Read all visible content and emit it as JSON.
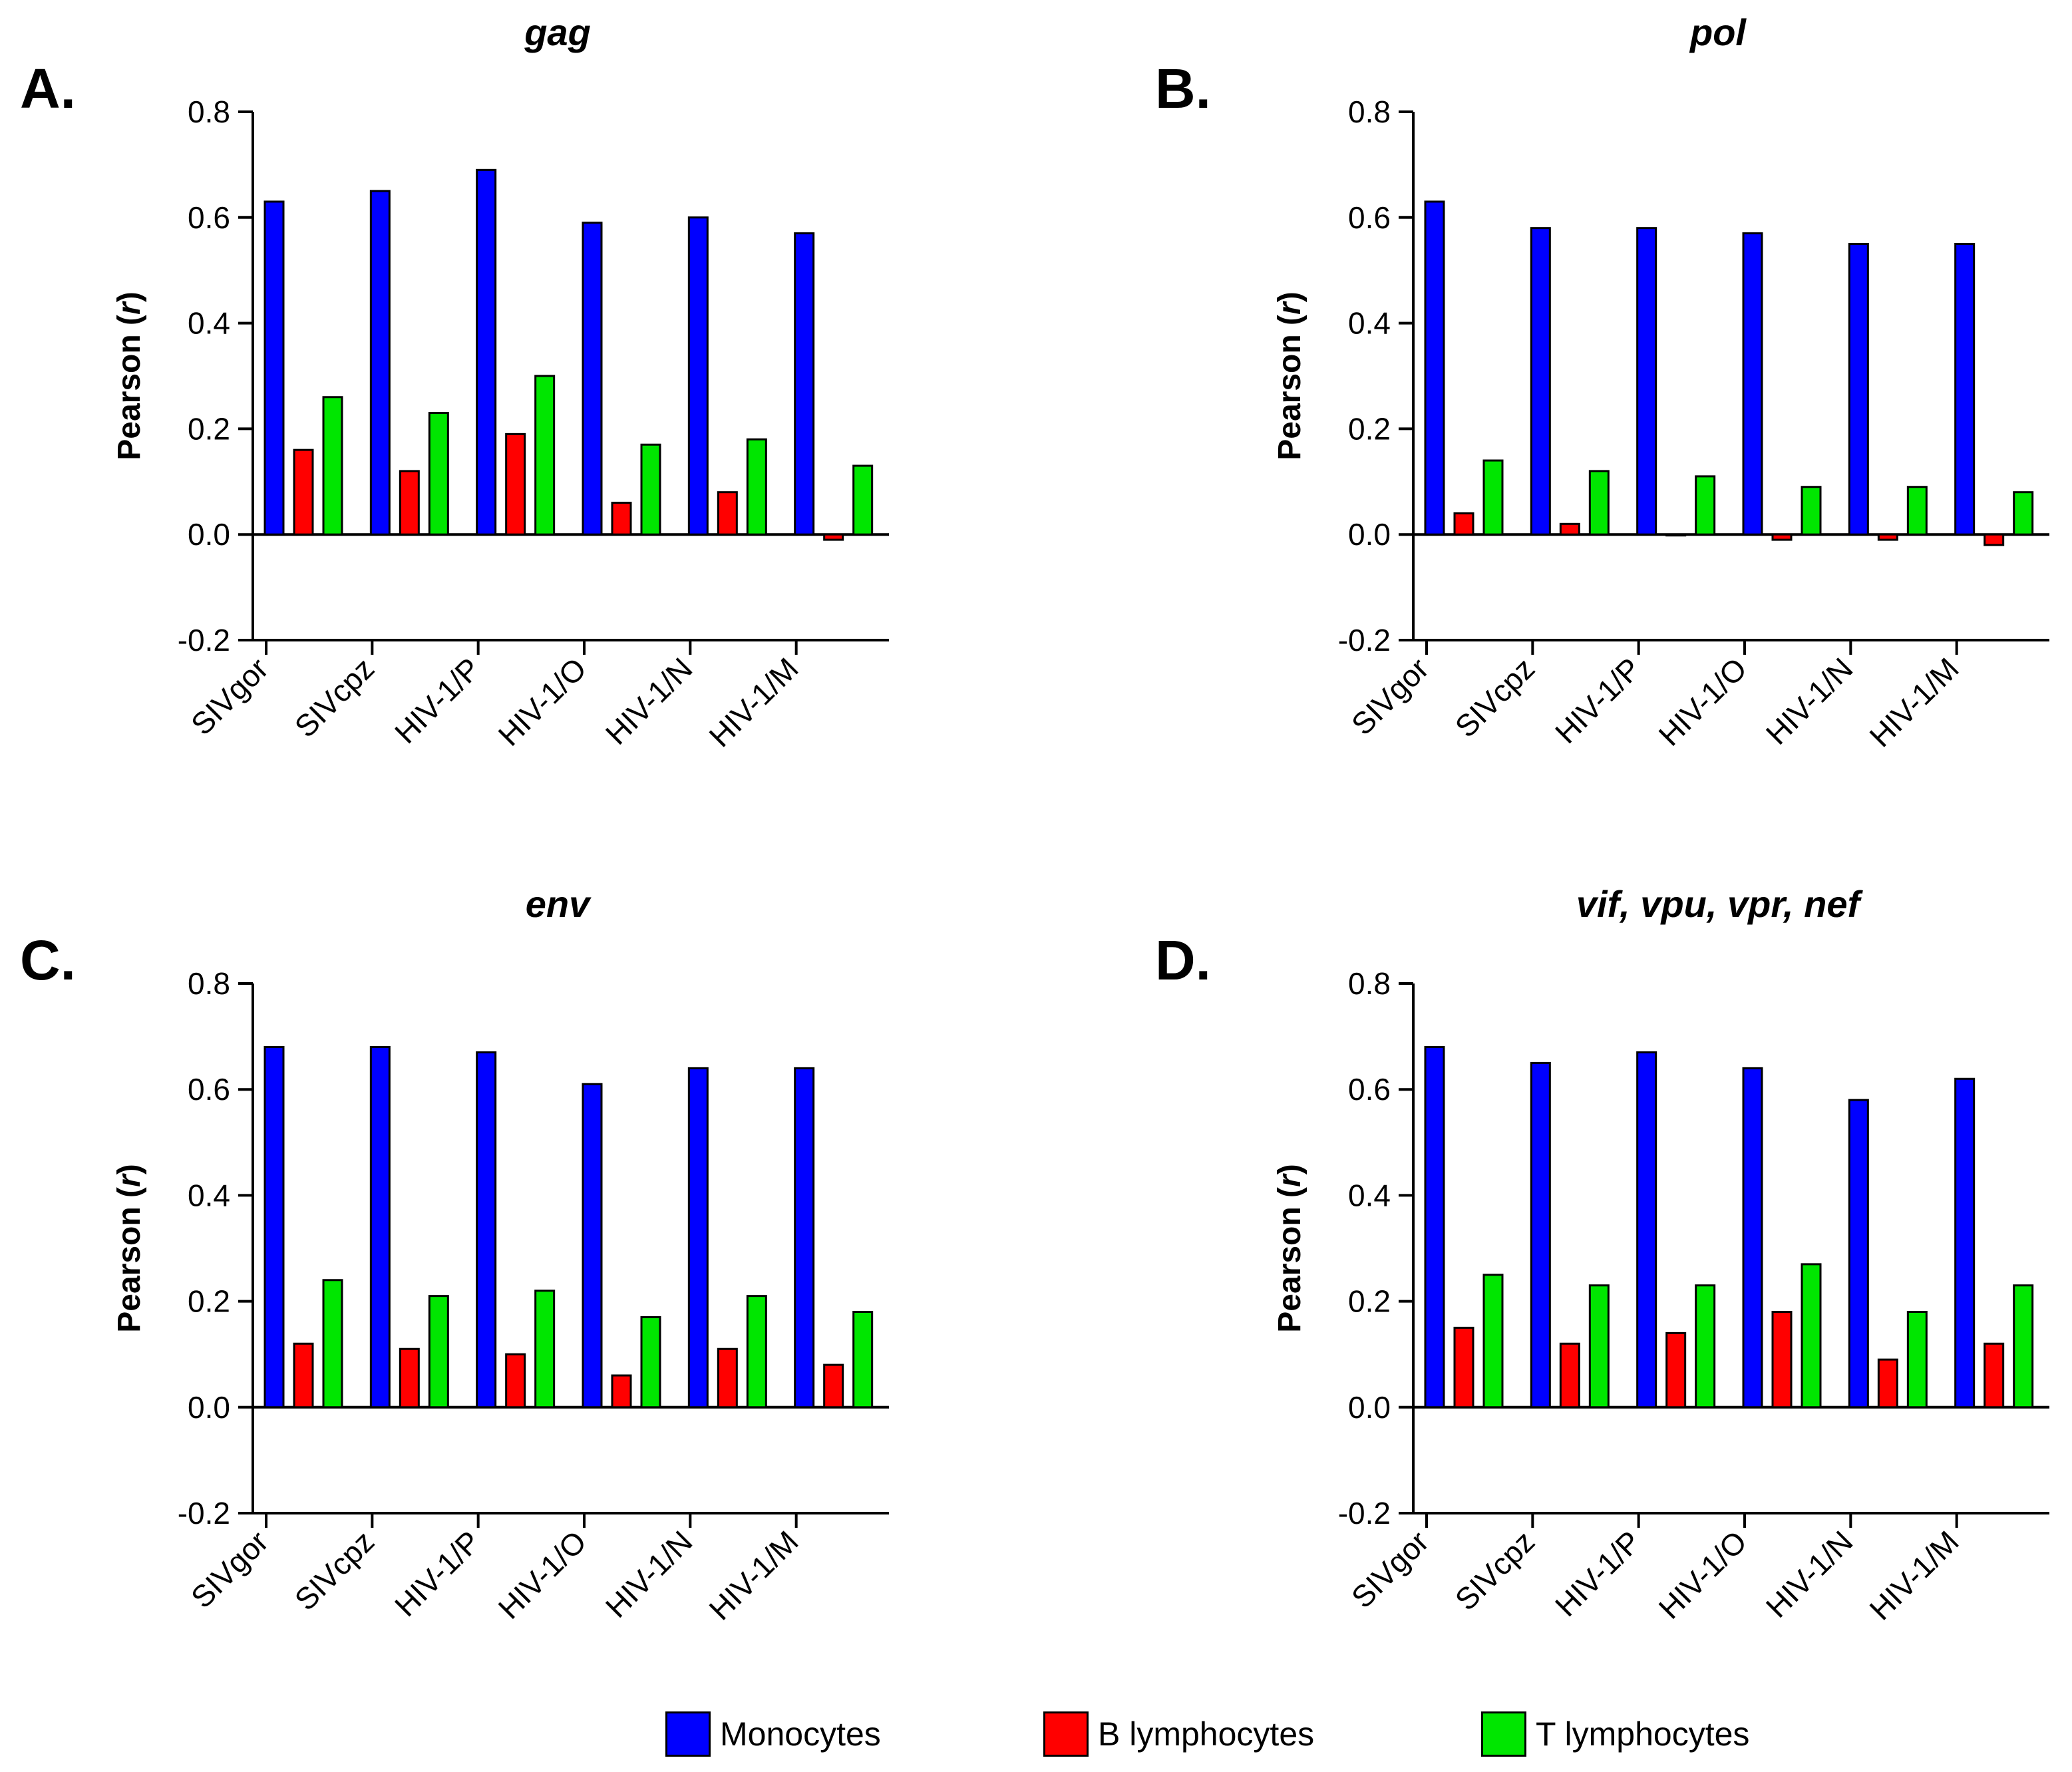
{
  "legend": [
    {
      "label": "Monocytes",
      "color": "#0000ff"
    },
    {
      "label": "B lymphocytes",
      "color": "#ff0000"
    },
    {
      "label": "T lymphocytes",
      "color": "#00e600"
    }
  ],
  "chart_data": [
    {
      "type": "bar",
      "panel": "A.",
      "title": "gag",
      "ylabel": "Pearson (r)",
      "ylim": [
        -0.2,
        0.8
      ],
      "yticks": [
        "-0.2",
        "0.0",
        "0.2",
        "0.4",
        "0.6",
        "0.8"
      ],
      "categories": [
        "SIVgor",
        "SIVcpz",
        "HIV-1/P",
        "HIV-1/O",
        "HIV-1/N",
        "HIV-1/M"
      ],
      "series": [
        {
          "name": "Monocytes",
          "values": [
            0.63,
            0.65,
            0.69,
            0.59,
            0.6,
            0.57
          ]
        },
        {
          "name": "B lymphocytes",
          "values": [
            0.16,
            0.12,
            0.19,
            0.06,
            0.08,
            -0.01
          ]
        },
        {
          "name": "T lymphocytes",
          "values": [
            0.26,
            0.23,
            0.3,
            0.17,
            0.18,
            0.13
          ]
        }
      ]
    },
    {
      "type": "bar",
      "panel": "B.",
      "title": "pol",
      "ylabel": "Pearson (r)",
      "ylim": [
        -0.2,
        0.8
      ],
      "yticks": [
        "-0.2",
        "0.0",
        "0.2",
        "0.4",
        "0.6",
        "0.8"
      ],
      "categories": [
        "SIVgor",
        "SIVcpz",
        "HIV-1/P",
        "HIV-1/O",
        "HIV-1/N",
        "HIV-1/M"
      ],
      "series": [
        {
          "name": "Monocytes",
          "values": [
            0.63,
            0.58,
            0.58,
            0.57,
            0.55,
            0.55
          ]
        },
        {
          "name": "B lymphocytes",
          "values": [
            0.04,
            0.02,
            0.0,
            -0.01,
            -0.01,
            -0.02
          ]
        },
        {
          "name": "T lymphocytes",
          "values": [
            0.14,
            0.12,
            0.11,
            0.09,
            0.09,
            0.08
          ]
        }
      ]
    },
    {
      "type": "bar",
      "panel": "C.",
      "title": "env",
      "ylabel": "Pearson (r)",
      "ylim": [
        -0.2,
        0.8
      ],
      "yticks": [
        "-0.2",
        "0.0",
        "0.2",
        "0.4",
        "0.6",
        "0.8"
      ],
      "categories": [
        "SIVgor",
        "SIVcpz",
        "HIV-1/P",
        "HIV-1/O",
        "HIV-1/N",
        "HIV-1/M"
      ],
      "series": [
        {
          "name": "Monocytes",
          "values": [
            0.68,
            0.68,
            0.67,
            0.61,
            0.64,
            0.64
          ]
        },
        {
          "name": "B lymphocytes",
          "values": [
            0.12,
            0.11,
            0.1,
            0.06,
            0.11,
            0.08
          ]
        },
        {
          "name": "T lymphocytes",
          "values": [
            0.24,
            0.21,
            0.22,
            0.17,
            0.21,
            0.18
          ]
        }
      ]
    },
    {
      "type": "bar",
      "panel": "D.",
      "title": "vif, vpu, vpr, nef",
      "ylabel": "Pearson (r)",
      "ylim": [
        -0.2,
        0.8
      ],
      "yticks": [
        "-0.2",
        "0.0",
        "0.2",
        "0.4",
        "0.6",
        "0.8"
      ],
      "categories": [
        "SIVgor",
        "SIVcpz",
        "HIV-1/P",
        "HIV-1/O",
        "HIV-1/N",
        "HIV-1/M"
      ],
      "series": [
        {
          "name": "Monocytes",
          "values": [
            0.68,
            0.65,
            0.67,
            0.64,
            0.58,
            0.62
          ]
        },
        {
          "name": "B lymphocytes",
          "values": [
            0.15,
            0.12,
            0.14,
            0.18,
            0.09,
            0.12
          ]
        },
        {
          "name": "T lymphocytes",
          "values": [
            0.25,
            0.23,
            0.23,
            0.27,
            0.18,
            0.23
          ]
        }
      ]
    }
  ]
}
